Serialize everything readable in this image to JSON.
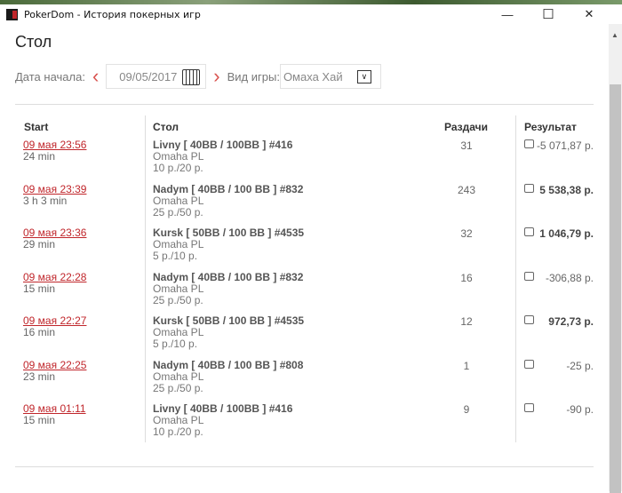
{
  "window": {
    "title": "PokerDom - История покерных игр",
    "minimize": "—",
    "maximize": "☐",
    "close": "✕"
  },
  "page": {
    "title": "Стол"
  },
  "filters": {
    "date_label": "Дата начала:",
    "date_value": "09/05/2017",
    "game_label": "Вид игры:",
    "game_value": "Омаха Хай"
  },
  "columns": {
    "start": "Start",
    "table": "Стол",
    "hands": "Раздачи",
    "result": "Результат"
  },
  "rows": [
    {
      "time": "09 мая 23:56",
      "duration": "24 min",
      "table": "Livny [ 40BB / 100BB ] #416",
      "game": "Omaha PL",
      "stakes": "10 р./20 р.",
      "hands": "31",
      "result": "-5 071,87 р.",
      "positive": false
    },
    {
      "time": "09 мая 23:39",
      "duration": "3 h 3 min",
      "table": "Nadym [ 40BB / 100 BB ] #832",
      "game": "Omaha PL",
      "stakes": "25 р./50 р.",
      "hands": "243",
      "result": "5 538,38 р.",
      "positive": true
    },
    {
      "time": "09 мая 23:36",
      "duration": "29 min",
      "table": "Kursk [ 50BB / 100 BB ] #4535",
      "game": "Omaha PL",
      "stakes": "5 р./10 р.",
      "hands": "32",
      "result": "1 046,79 р.",
      "positive": true
    },
    {
      "time": "09 мая 22:28",
      "duration": "15 min",
      "table": "Nadym [ 40BB / 100 BB ] #832",
      "game": "Omaha PL",
      "stakes": "25 р./50 р.",
      "hands": "16",
      "result": "-306,88 р.",
      "positive": false
    },
    {
      "time": "09 мая 22:27",
      "duration": "16 min",
      "table": "Kursk [ 50BB / 100 BB ] #4535",
      "game": "Omaha PL",
      "stakes": "5 р./10 р.",
      "hands": "12",
      "result": "972,73 р.",
      "positive": true
    },
    {
      "time": "09 мая 22:25",
      "duration": "23 min",
      "table": "Nadym [ 40BB / 100 BB ] #808",
      "game": "Omaha PL",
      "stakes": "25 р./50 р.",
      "hands": "1",
      "result": "-25 р.",
      "positive": false
    },
    {
      "time": "09 мая 01:11",
      "duration": "15 min",
      "table": "Livny [ 40BB / 100BB ] #416",
      "game": "Omaha PL",
      "stakes": "10 р./20 р.",
      "hands": "9",
      "result": "-90 р.",
      "positive": false
    }
  ],
  "colors": {
    "accent": "#c0262b"
  }
}
